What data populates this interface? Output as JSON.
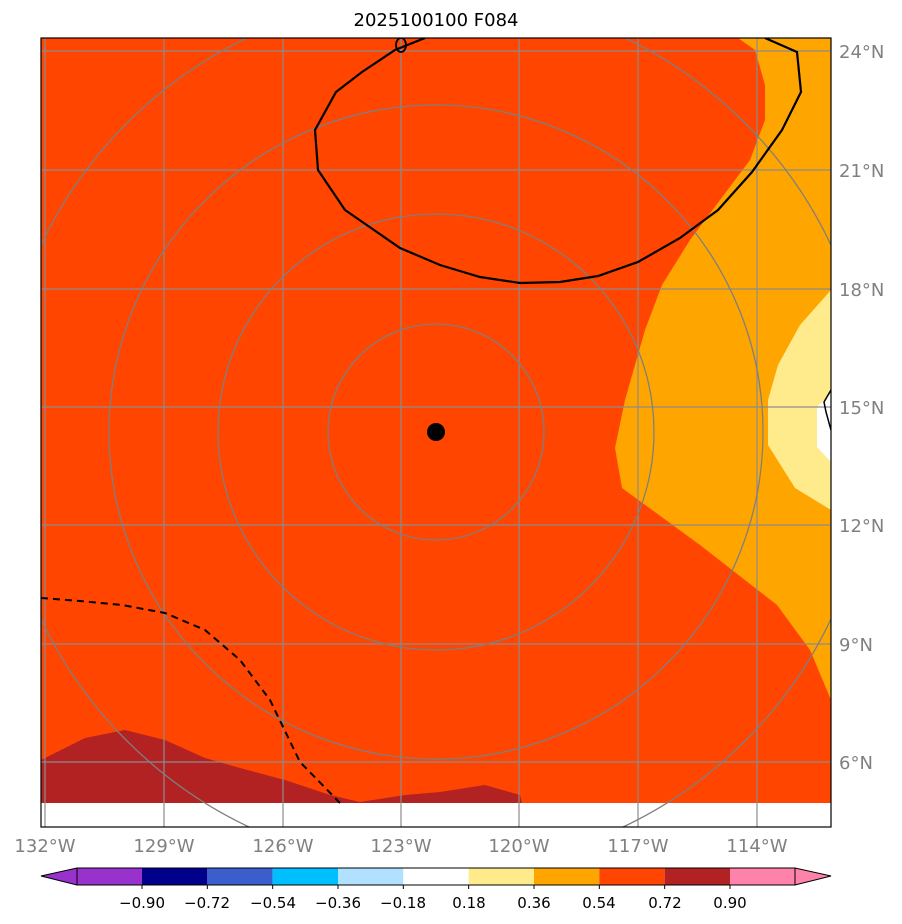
{
  "title": "2025100100 F084",
  "map": {
    "lon_labels": [
      "132°W",
      "129°W",
      "126°W",
      "123°W",
      "120°W",
      "117°W",
      "114°W"
    ],
    "lat_labels": [
      "24°N",
      "21°N",
      "18°N",
      "15°N",
      "12°N",
      "9°N",
      "6°N"
    ],
    "lon_range": [
      -131.9,
      -111.9
    ],
    "lat_range": [
      4.3,
      24.3
    ],
    "storm_center": {
      "lon": -122.1,
      "lat": 14.4
    },
    "contour_label": "0"
  },
  "colorbar": {
    "tick_labels": [
      "−0.90",
      "−0.72",
      "−0.54",
      "−0.36",
      "−0.18",
      "0.18",
      "0.36",
      "0.54",
      "0.72",
      "0.90"
    ],
    "levels": [
      -0.9,
      -0.72,
      -0.54,
      -0.36,
      -0.18,
      0.18,
      0.36,
      0.54,
      0.72,
      0.9
    ],
    "colors": {
      "under": "#9932cc",
      "bins": [
        "#00008b",
        "#3a5fcd",
        "#00bfff",
        "#b0e2ff",
        "#ffffff",
        "#ffeb8c",
        "#ffa500",
        "#ff4500",
        "#b22222"
      ],
      "over": "#ff82ab"
    }
  }
}
